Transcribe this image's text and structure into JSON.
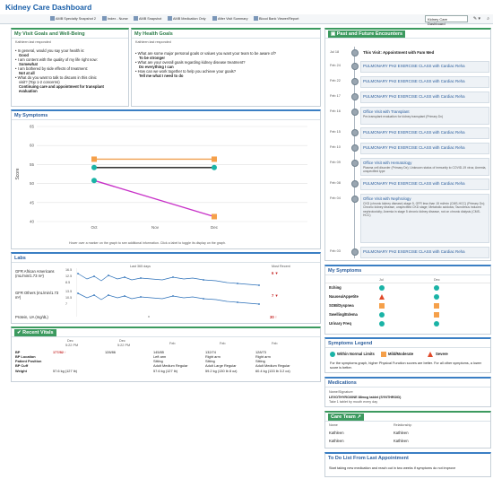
{
  "app": {
    "title": "Kidney Care Dashboard"
  },
  "tabs": [
    {
      "label": "AMB Specialty Snapshot 2"
    },
    {
      "label": "Index - Nurse"
    },
    {
      "label": "AMB Snapshot"
    },
    {
      "label": "AMB Medication Only"
    },
    {
      "label": "After Visit Summary"
    },
    {
      "label": "Blood Bank Viewer/Report"
    }
  ],
  "toolbar": {
    "view_select": "Kidney Care Dashboard",
    "tool1": "✎ ▾",
    "tool2": "⌕"
  },
  "visit_goals": {
    "title": "My Visit Goals and Well-Being",
    "responded": "Kathleen last responded",
    "lines": [
      "In general, would you say your health is:",
      "Good",
      "I am content with the quality of my life right now:",
      "Somewhat",
      "I am bothered by side effects of treatment:",
      "Not at all",
      "What do you want to talk to discuss in this clinic",
      "visit? (Top 1-2 concerns)",
      "Continuing care and appointment for transplant",
      "evaluation"
    ]
  },
  "health_goals": {
    "title": "My Health Goals",
    "responded": "Kathleen last responded",
    "lines": [
      "What are some major personal goals or values you want your team to be aware of?",
      "To be stronger",
      "What are your overall goals regarding kidney disease treatment?",
      "Do everything I can",
      "How can we work together to help you achieve your goals?",
      "Tell me what I need to do"
    ]
  },
  "symptoms_chart": {
    "title": "My Symptoms",
    "ylabel": "Score",
    "hint": "Hover over a marker on the graph to see additional information. Click a label to toggle its display on the graph.",
    "legend": [
      "Physical Function",
      "Depression",
      "Fatigue"
    ]
  },
  "chart_data": {
    "type": "line",
    "categories": [
      "Oct",
      "Nov",
      "Dec"
    ],
    "ylabel": "Score",
    "ylim": [
      40,
      65
    ],
    "yticks": [
      40,
      45,
      50,
      55,
      60,
      65
    ],
    "series": [
      {
        "name": "Physical Function",
        "color": "#c832c8",
        "points": [
          [
            0,
            50.8
          ],
          [
            2,
            41.3
          ]
        ]
      },
      {
        "name": "Depression",
        "color": "#1a1a1a",
        "points": [
          [
            0,
            54.2
          ],
          [
            2,
            54.2
          ]
        ]
      },
      {
        "name": "Fatigue",
        "color": "#f0a050",
        "points": [
          [
            0,
            56.4
          ],
          [
            2,
            56.4
          ]
        ]
      }
    ],
    "markers": [
      {
        "x": 0,
        "y": 56.4,
        "shape": "square",
        "color": "#f5a04a"
      },
      {
        "x": 0,
        "y": 54.2,
        "shape": "circle",
        "color": "#1ab3a6"
      },
      {
        "x": 0,
        "y": 50.8,
        "shape": "circle",
        "color": "#1ab3a6"
      },
      {
        "x": 2,
        "y": 56.4,
        "shape": "square",
        "color": "#f5a04a"
      },
      {
        "x": 2,
        "y": 54.2,
        "shape": "circle",
        "color": "#1ab3a6"
      },
      {
        "x": 2,
        "y": 41.3,
        "shape": "square",
        "color": "#f5a04a"
      }
    ],
    "grid": true
  },
  "labs": {
    "title": "Labs",
    "period": "Last 365 days",
    "most_recent": "Most Recent",
    "rows": [
      {
        "name": "GFR African Americans (mL/min/1.73 m²)",
        "ticks": [
          "16.5",
          "12.5",
          "8.5"
        ],
        "recent": "6 ▼"
      },
      {
        "name": "GFR Others (mL/min/1.73 m²)",
        "ticks": [
          "13.5",
          "10.5",
          "7"
        ],
        "recent": "7 ▼"
      },
      {
        "name": "Protein, UA (mg/dL)",
        "ticks": [
          "—"
        ],
        "recent": "30 ↑"
      }
    ]
  },
  "vitals": {
    "title": "Recent Vitals",
    "cols": [
      {
        "date": "Dec",
        "time": "5:22 PM"
      },
      {
        "date": "Dec",
        "time": "5:22 PM"
      },
      {
        "date": "Feb",
        "time": ""
      },
      {
        "date": "Feb",
        "time": ""
      },
      {
        "date": "Feb",
        "time": ""
      }
    ],
    "rows": [
      {
        "label": "BP",
        "values": [
          "177/82 ↑",
          "128/86",
          "145/85",
          "132/74",
          "128/73"
        ]
      },
      {
        "label": "BP Location",
        "values": [
          "",
          "",
          "Left arm",
          "Right arm",
          "Right arm"
        ]
      },
      {
        "label": "Patient Position",
        "values": [
          "",
          "",
          "Sitting",
          "Sitting",
          "Sitting"
        ]
      },
      {
        "label": "BP Cuff",
        "values": [
          "",
          "",
          "Adult Medium Regular",
          "Adult Large Regular",
          "Adult Medium Regular"
        ]
      },
      {
        "label": "Weight",
        "values": [
          "57.6 kg (127 lb)",
          "",
          "57.6 kg (127 lb)",
          "59.2 kg (130 lb 8 oz)",
          "60.4 kg (133 lb 3.2 oz)"
        ]
      }
    ]
  },
  "encounters": {
    "title": "Past and Future Encounters",
    "items": [
      {
        "date": "Jul 18",
        "text": "This Visit: Appointment with Fam Med",
        "sub": ""
      },
      {
        "date": "Feb 24",
        "text": "PULMONARY PH2 EXERCISE CLASS with Cardiac Reha",
        "sub": ""
      },
      {
        "date": "Feb 22",
        "text": "PULMONARY PH2 EXERCISE CLASS with Cardiac Reha",
        "sub": ""
      },
      {
        "date": "Feb 17",
        "text": "PULMONARY PH2 EXERCISE CLASS with Cardiac Reha",
        "sub": ""
      },
      {
        "date": "Feb 16",
        "text": "Office Visit with Transplant",
        "sub": "Pre-transplant evaluation for kidney transplant (Primary Dx)"
      },
      {
        "date": "Feb 15",
        "text": "PULMONARY PH2 EXERCISE CLASS with Cardiac Reha",
        "sub": ""
      },
      {
        "date": "Feb 10",
        "text": "PULMONARY PH2 EXERCISE CLASS with Cardiac Reha",
        "sub": ""
      },
      {
        "date": "Feb 09",
        "text": "Office Visit with Hematology",
        "sub": "Plasma cell disorder (Primary Dx); Unknown status of immunity to COVID-19 virus; Anemia, unspecified type"
      },
      {
        "date": "Feb 08",
        "text": "PULMONARY PH2 EXERCISE CLASS with Cardiac Reha",
        "sub": ""
      },
      {
        "date": "Feb 04",
        "text": "Office Visit with Nephrology",
        "sub": "CKD (chronic kidney disease) stage 5, GFR less than 15 ml/min (CMS-HCC) (Primary Dx); Chronic kidney disease, unspecified CKD stage; Metabolic acidosis; Tacrolimus induced nephrotoxicity; Anemia in stage 5 chronic kidney disease, not on chronic dialysis (CMS-HCC)"
      },
      {
        "date": "Feb 03",
        "text": "PULMONARY PH2 EXERCISE CLASS with Cardiac Reha",
        "sub": ""
      }
    ]
  },
  "symptom_table": {
    "title": "My Symptoms",
    "cols": [
      "Jul",
      "Dec"
    ],
    "rows": [
      {
        "label": "Itching",
        "marks": [
          "circle",
          "circle"
        ]
      },
      {
        "label": "Nausea/Appetite",
        "marks": [
          "triangle",
          "circle"
        ]
      },
      {
        "label": "SOB/Dyspnea",
        "marks": [
          "square",
          "square"
        ]
      },
      {
        "label": "Swelling/Edema",
        "marks": [
          "circle",
          "square"
        ]
      },
      {
        "label": "Urinary Freq",
        "marks": [
          "circle",
          "circle"
        ]
      }
    ]
  },
  "legend": {
    "title": "Symptoms Legend",
    "items": [
      "Within Normal Limits",
      "Mild/Moderate",
      "Severe"
    ],
    "note": "For the symptoms graph, higher Physical Function scores are better. For all other symptoms, a lower score is better."
  },
  "medications": {
    "title": "Medications",
    "header": "Name/Signature",
    "items": [
      "LEVOTHYROXINE 88mcg tablet (SYNTHROID)",
      "Take 1 tablet by mouth every day"
    ]
  },
  "care_team": {
    "title": "Care Team",
    "cols": [
      "Name",
      "Relationship"
    ],
    "rows": [
      [
        "Kathleen",
        "Kathleen"
      ],
      [
        "Kathleen",
        "Kathleen"
      ]
    ]
  },
  "todo": {
    "title": "To Do List From Last Appointment",
    "text": "Start taking new medication and reach out in two weeks if symptoms do not improve"
  }
}
